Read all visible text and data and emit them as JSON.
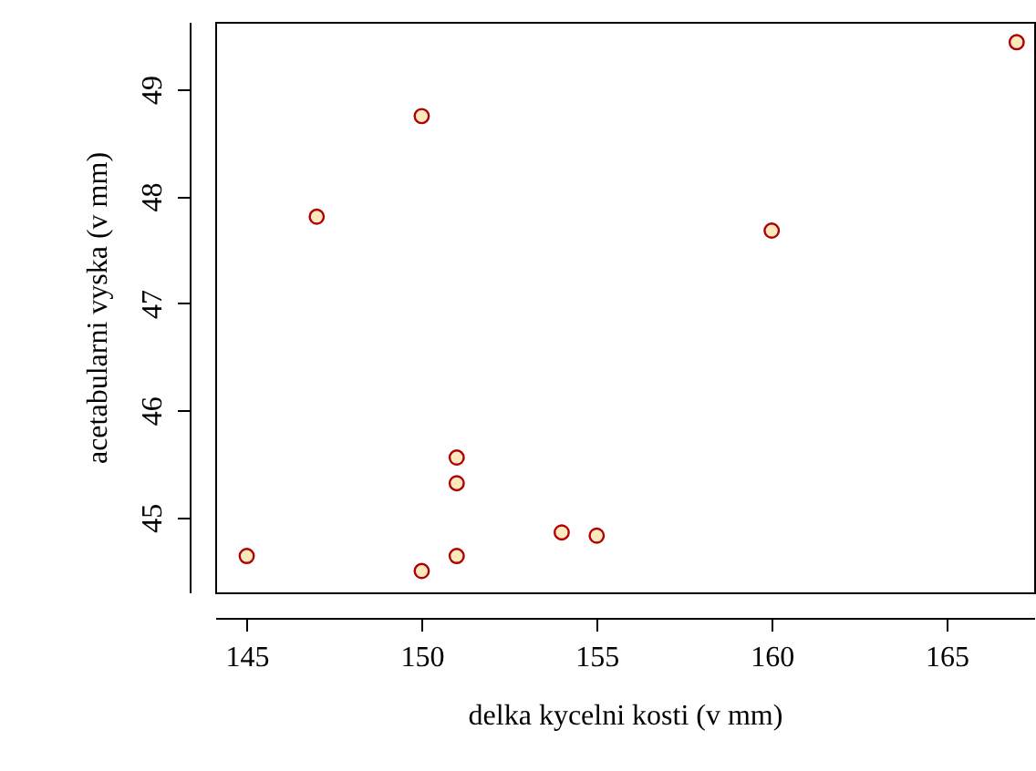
{
  "chart_data": {
    "type": "scatter",
    "xlabel": "delka kycelni kosti (v mm)",
    "ylabel": "acetabularni vyska (v mm)",
    "x": [
      145,
      147,
      150,
      150,
      151,
      151,
      151,
      154,
      155,
      160,
      167
    ],
    "series": [
      {
        "color": "#b00000",
        "values": [
          44.64,
          47.81,
          48.75,
          44.5,
          45.56,
          45.32,
          44.64,
          44.86,
          44.83,
          47.68,
          49.44
        ]
      }
    ],
    "xlim": [
      144.1,
      167.5
    ],
    "ylim": [
      44.3,
      49.63
    ],
    "xticks": [
      145,
      150,
      155,
      160,
      165
    ],
    "yticks": [
      45,
      46,
      47,
      48,
      49
    ],
    "marker": "circle",
    "grid": false
  }
}
